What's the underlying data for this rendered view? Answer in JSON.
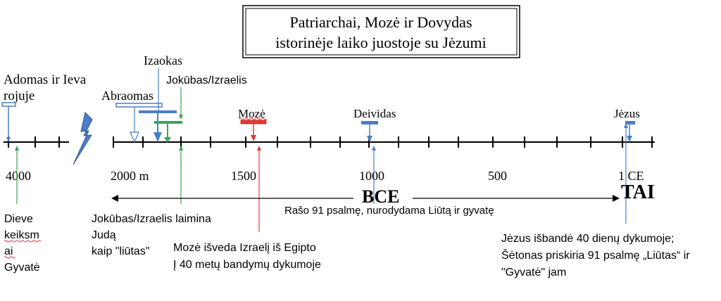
{
  "title": {
    "line1": "Patriarchai, Mozė ir Dovydas",
    "line2": "istorinėje laiko juostoje su Jėzumi"
  },
  "labels": {
    "adam_eve_1": "Adomas ir Ieva",
    "adam_eve_2": "rojuje",
    "abraham": "Abraomas",
    "isaac": "Izaokas",
    "jacob": "Jokūbas/Izraelis",
    "moses": "Mozė",
    "david": "Deividas",
    "jesus": "Jėzus"
  },
  "ticks": {
    "t4000": "4000",
    "t2000": "2000 m",
    "t1500": "1500",
    "t1000": "1000",
    "t500": "500",
    "t1ce": "1 CE"
  },
  "era": {
    "bce": "BCE",
    "tai": "TAI"
  },
  "annotations": {
    "psalm91": "Rašo 91 psalmę, nurodydama Liūtą ir gyvatę",
    "curse_1": "Dieve",
    "curse_2": "keiksm",
    "curse_3": "ai",
    "curse_4": "Gyvatė",
    "jacob_bless_1": "Jokūbas/Izraelis laimina",
    "jacob_bless_2": "Judą",
    "jacob_bless_3": "kaip \"liūtas\"",
    "exodus_1": "Mozė išveda Izraelį iš Egipto",
    "exodus_2": "Į 40 metų bandymų dykumoje",
    "jesus_1": "Jėzus išbandė 40 dienų dykumoje;",
    "jesus_2": "Šėtonas priskiria 91 psalmę „Liūtas“ ir",
    "jesus_3": "\"Gyvatė\" jam"
  },
  "colors": {
    "blue": "#4a7ec7",
    "green": "#3aa655",
    "red": "#e53935",
    "darkblue": "#3f63a8"
  }
}
